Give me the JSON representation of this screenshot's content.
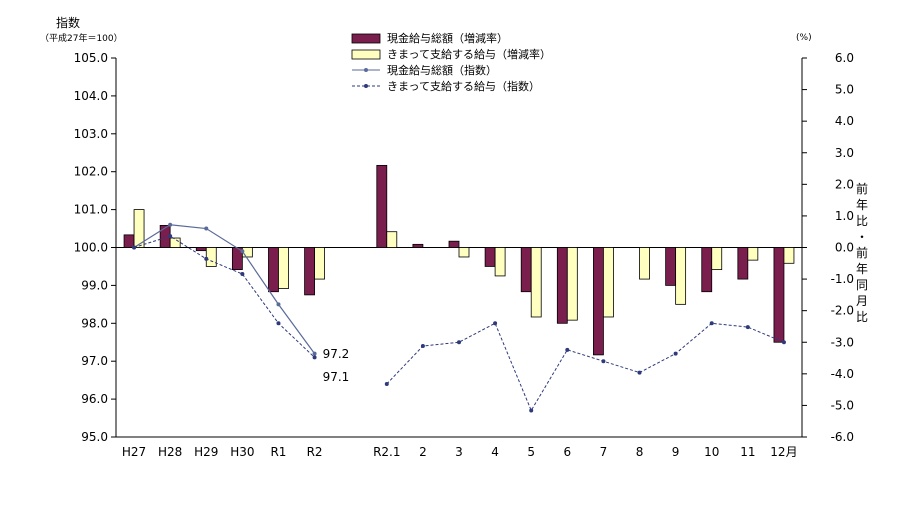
{
  "chart_data": {
    "type": "bar",
    "left_axis": {
      "title": "指数",
      "subtitle": "（平成27年＝100）",
      "min": 95.0,
      "max": 105.0,
      "step": 1.0,
      "tick_labels": [
        "95.0",
        "96.0",
        "97.0",
        "98.0",
        "99.0",
        "100.0",
        "101.0",
        "102.0",
        "103.0",
        "104.0",
        "105.0"
      ]
    },
    "right_axis": {
      "unit": "(%)",
      "title": "前年比・前年同月比",
      "min": -6.0,
      "max": 6.0,
      "step": 1.0,
      "tick_labels": [
        "-6.0",
        "-5.0",
        "-4.0",
        "-3.0",
        "-2.0",
        "-1.0",
        "0.0",
        "1.0",
        "2.0",
        "3.0",
        "4.0",
        "5.0",
        "6.0"
      ]
    },
    "categories": [
      "H27",
      "H28",
      "H29",
      "H30",
      "R1",
      "R2",
      "",
      "R2.1",
      "2",
      "3",
      "4",
      "5",
      "6",
      "7",
      "8",
      "9",
      "10",
      "11",
      "12月"
    ],
    "series": [
      {
        "name": "現金給与総額（増減率）",
        "kind": "bar",
        "axis": "right",
        "color": "#7a1e4e",
        "values": [
          0.4,
          0.7,
          -0.1,
          -0.7,
          -1.4,
          -1.5,
          null,
          2.6,
          0.1,
          0.2,
          -0.6,
          -1.4,
          -2.4,
          -3.4,
          null,
          -1.2,
          -1.4,
          -1.0,
          -3.0
        ]
      },
      {
        "name": "きまって支給する給与（増減率）",
        "kind": "bar",
        "axis": "right",
        "color": "#ffffc0",
        "values": [
          1.2,
          0.3,
          -0.6,
          -0.3,
          -1.3,
          -1.0,
          null,
          0.5,
          0.0,
          -0.3,
          -0.9,
          -2.2,
          -2.3,
          -2.2,
          -1.0,
          -1.8,
          -0.7,
          -0.4,
          -0.5
        ]
      },
      {
        "name": "現金給与総額（指数）",
        "kind": "line",
        "axis": "left",
        "color": "#5a6a9a",
        "dashed": false,
        "values": [
          100.0,
          100.6,
          100.5,
          99.9,
          98.5,
          97.2,
          null,
          null,
          null,
          null,
          null,
          null,
          null,
          null,
          null,
          null,
          null,
          null,
          null
        ]
      },
      {
        "name": "きまって支給する給与（指数）",
        "kind": "line",
        "axis": "left",
        "color": "#2e3a7a",
        "dashed": true,
        "values": [
          100.0,
          100.3,
          99.7,
          99.3,
          98.0,
          97.1,
          null,
          96.4,
          97.4,
          97.5,
          98.0,
          95.7,
          97.3,
          97.0,
          96.7,
          97.2,
          98.0,
          97.9,
          97.5
        ]
      }
    ],
    "annotations": [
      {
        "text": "97.2",
        "category_index": 5,
        "series_index": 2
      },
      {
        "text": "97.1",
        "category_index": 5,
        "series_index": 3
      }
    ],
    "legend_position": "top-center",
    "grid": false
  }
}
